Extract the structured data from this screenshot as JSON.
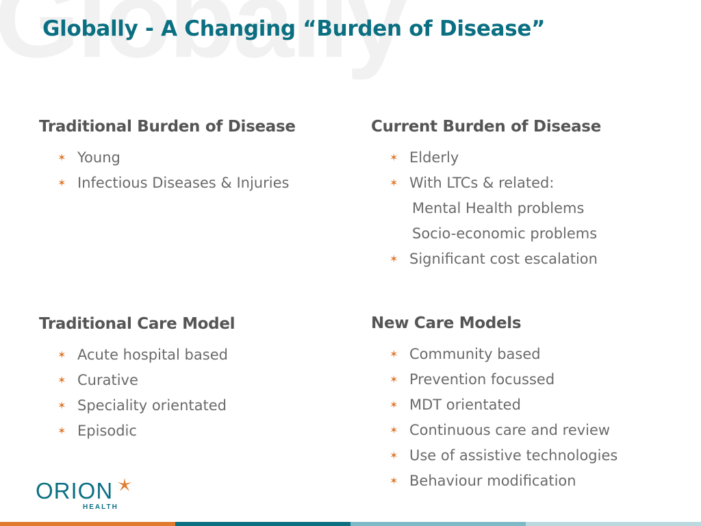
{
  "watermark": "Globally",
  "title": "Globally - A Changing “Burden of Disease”",
  "sections": {
    "traditional_burden": {
      "heading": "Traditional Burden of Disease",
      "items": [
        "Young",
        "Infectious Diseases & Injuries"
      ]
    },
    "current_burden": {
      "heading": "Current Burden of Disease",
      "items": [
        "Elderly",
        "With LTCs & related:",
        "Significant cost escalation"
      ],
      "sub_items": [
        "Mental Health problems",
        "Socio-economic problems"
      ]
    },
    "traditional_care": {
      "heading": "Traditional Care Model",
      "items": [
        "Acute hospital based",
        "Curative",
        "Speciality orientated",
        "Episodic"
      ]
    },
    "new_care": {
      "heading": "New Care Models",
      "items": [
        "Community based",
        "Prevention focussed",
        "MDT orientated",
        "Continuous care and review",
        "Use of assistive technologies",
        "Behaviour modification"
      ]
    }
  },
  "logo": {
    "name": "ORION",
    "sub": "HEALTH"
  },
  "colors": {
    "title": "#0b6f82",
    "bullet": "#e07a2e",
    "footer": [
      "#e07a2e",
      "#0b6f82",
      "#7fb9c7",
      "#bcd9e0"
    ]
  },
  "icons": {
    "bullet": "star-bullet-icon",
    "logo": "orion-star-icon"
  }
}
